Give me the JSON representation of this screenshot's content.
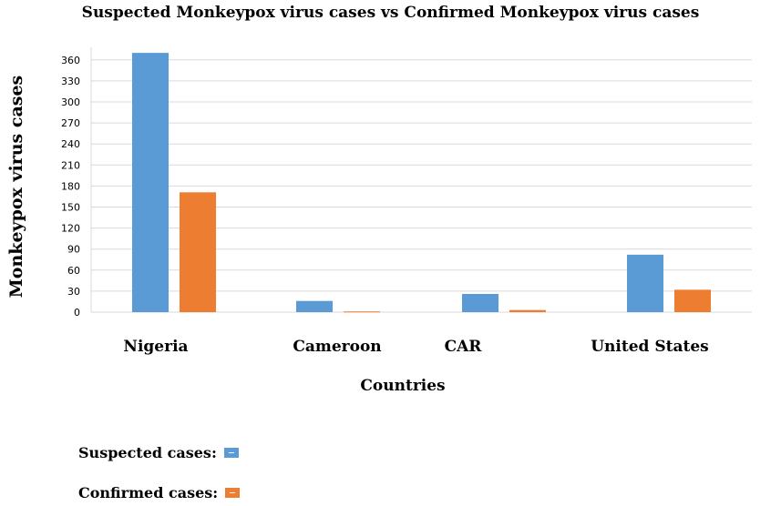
{
  "chart_data": {
    "type": "bar",
    "title": "Suspected Monkeypox virus cases vs Confirmed Monkeypox virus cases",
    "xlabel": "Countries",
    "ylabel": "Monkeypox virus cases",
    "categories": [
      "Nigeria",
      "Cameroon",
      "CAR",
      "United States"
    ],
    "series": [
      {
        "name": "Suspected cases:",
        "color": "#5b9bd5",
        "values": [
          370,
          16,
          26,
          82
        ]
      },
      {
        "name": "Confirmed cases:",
        "color": "#ed7d31",
        "values": [
          171,
          1,
          3,
          32
        ]
      }
    ],
    "yticks": [
      0,
      30,
      60,
      90,
      120,
      150,
      180,
      210,
      240,
      270,
      300,
      330,
      360
    ],
    "ylim": [
      0,
      370
    ],
    "grid": true,
    "legend_position": "bottom-left"
  }
}
